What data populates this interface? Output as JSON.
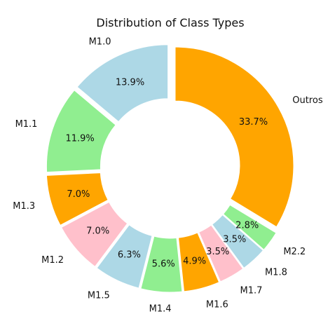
{
  "chart_data": {
    "type": "pie",
    "subtype": "donut-exploded",
    "title": "Distribution of Class Types",
    "slices": [
      {
        "label": "Outros",
        "value": 33.7,
        "pct_label": "33.7%",
        "color": "#ffa500"
      },
      {
        "label": "M2.2",
        "value": 2.8,
        "pct_label": "2.8%",
        "color": "#90ee90"
      },
      {
        "label": "M1.8",
        "value": 3.5,
        "pct_label": "3.5%",
        "color": "#add8e6"
      },
      {
        "label": "M1.7",
        "value": 3.5,
        "pct_label": "3.5%",
        "color": "#ffc0cb"
      },
      {
        "label": "M1.6",
        "value": 4.9,
        "pct_label": "4.9%",
        "color": "#ffa500"
      },
      {
        "label": "M1.4",
        "value": 5.6,
        "pct_label": "5.6%",
        "color": "#90ee90"
      },
      {
        "label": "M1.5",
        "value": 6.3,
        "pct_label": "6.3%",
        "color": "#add8e6"
      },
      {
        "label": "M1.2",
        "value": 7.0,
        "pct_label": "7.0%",
        "color": "#ffc0cb"
      },
      {
        "label": "M1.3",
        "value": 7.0,
        "pct_label": "7.0%",
        "color": "#ffa500"
      },
      {
        "label": "M1.1",
        "value": 11.9,
        "pct_label": "11.9%",
        "color": "#90ee90"
      },
      {
        "label": "M1.0",
        "value": 13.9,
        "pct_label": "13.9%",
        "color": "#add8e6"
      }
    ],
    "start_angle_deg": 90,
    "direction": "clockwise",
    "legend": "none"
  }
}
